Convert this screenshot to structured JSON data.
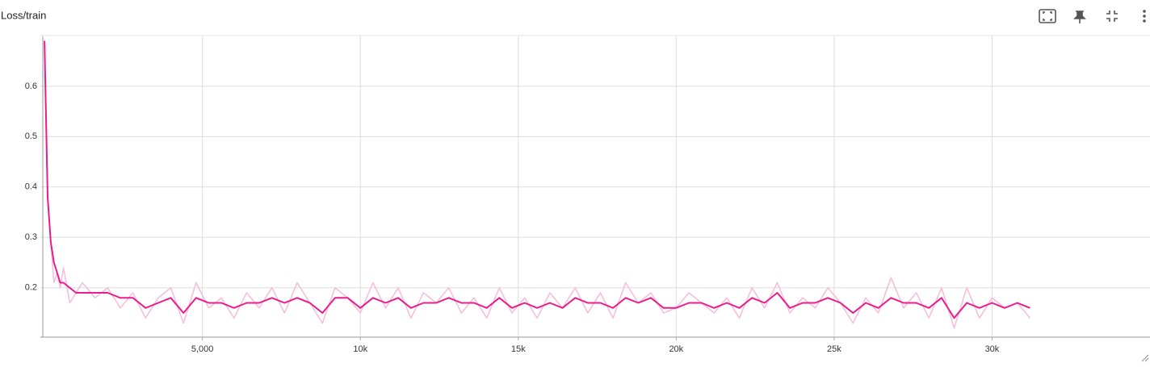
{
  "chart_data": {
    "type": "line",
    "title": "Loss/train",
    "x": [
      0,
      100,
      200,
      300,
      400,
      500,
      600,
      800,
      1000,
      1200,
      1600,
      2000,
      2400,
      2800,
      3200,
      3600,
      4000,
      4400,
      4800,
      5200,
      5600,
      6000,
      6400,
      6800,
      7200,
      7600,
      8000,
      8400,
      8800,
      9200,
      9600,
      10000,
      10400,
      10800,
      11200,
      11600,
      12000,
      12400,
      12800,
      13200,
      13600,
      14000,
      14400,
      14800,
      15200,
      15600,
      16000,
      16400,
      16800,
      17200,
      17600,
      18000,
      18400,
      18800,
      19200,
      19600,
      20000,
      20400,
      20800,
      21200,
      21600,
      22000,
      22400,
      22800,
      23200,
      23600,
      24000,
      24400,
      24800,
      25200,
      25600,
      26000,
      26400,
      26800,
      27200,
      27600,
      28000,
      28400,
      28800,
      29200,
      29600,
      30000,
      30400,
      30800,
      31200
    ],
    "series": [
      {
        "color": "#f5bfdc",
        "values": [
          0.69,
          0.38,
          0.29,
          0.21,
          0.23,
          0.2,
          0.24,
          0.17,
          0.19,
          0.21,
          0.18,
          0.2,
          0.16,
          0.19,
          0.14,
          0.18,
          0.2,
          0.13,
          0.21,
          0.16,
          0.18,
          0.14,
          0.19,
          0.16,
          0.2,
          0.15,
          0.21,
          0.17,
          0.13,
          0.2,
          0.18,
          0.15,
          0.21,
          0.16,
          0.2,
          0.14,
          0.19,
          0.17,
          0.2,
          0.15,
          0.18,
          0.14,
          0.2,
          0.15,
          0.18,
          0.14,
          0.19,
          0.16,
          0.2,
          0.15,
          0.19,
          0.14,
          0.21,
          0.17,
          0.19,
          0.15,
          0.16,
          0.19,
          0.17,
          0.15,
          0.18,
          0.14,
          0.2,
          0.16,
          0.21,
          0.15,
          0.18,
          0.16,
          0.2,
          0.17,
          0.13,
          0.18,
          0.15,
          0.22,
          0.16,
          0.19,
          0.14,
          0.2,
          0.12,
          0.2,
          0.14,
          0.18,
          0.16,
          0.17,
          0.14
        ]
      },
      {
        "color": "#e91e8c",
        "values": [
          0.69,
          0.38,
          0.29,
          0.25,
          0.23,
          0.21,
          0.21,
          0.2,
          0.19,
          0.19,
          0.19,
          0.19,
          0.18,
          0.18,
          0.16,
          0.17,
          0.18,
          0.15,
          0.18,
          0.17,
          0.17,
          0.16,
          0.17,
          0.17,
          0.18,
          0.17,
          0.18,
          0.17,
          0.15,
          0.18,
          0.18,
          0.16,
          0.18,
          0.17,
          0.18,
          0.16,
          0.17,
          0.17,
          0.18,
          0.17,
          0.17,
          0.16,
          0.18,
          0.16,
          0.17,
          0.16,
          0.17,
          0.16,
          0.18,
          0.17,
          0.17,
          0.16,
          0.18,
          0.17,
          0.18,
          0.16,
          0.16,
          0.17,
          0.17,
          0.16,
          0.17,
          0.16,
          0.18,
          0.17,
          0.19,
          0.16,
          0.17,
          0.17,
          0.18,
          0.17,
          0.15,
          0.17,
          0.16,
          0.18,
          0.17,
          0.17,
          0.16,
          0.18,
          0.14,
          0.17,
          0.16,
          0.17,
          0.16,
          0.17,
          0.16
        ]
      }
    ],
    "xlim": [
      -130,
      35000
    ],
    "ylim": [
      0.102,
      0.699
    ],
    "xticks": [
      {
        "value": 5000,
        "label": "5,000"
      },
      {
        "value": 10000,
        "label": "10k"
      },
      {
        "value": 15000,
        "label": "15k"
      },
      {
        "value": 20000,
        "label": "20k"
      },
      {
        "value": 25000,
        "label": "25k"
      },
      {
        "value": 30000,
        "label": "30k"
      }
    ],
    "yticks": [
      0.2,
      0.3,
      0.4,
      0.5,
      0.6
    ],
    "grid": true
  }
}
